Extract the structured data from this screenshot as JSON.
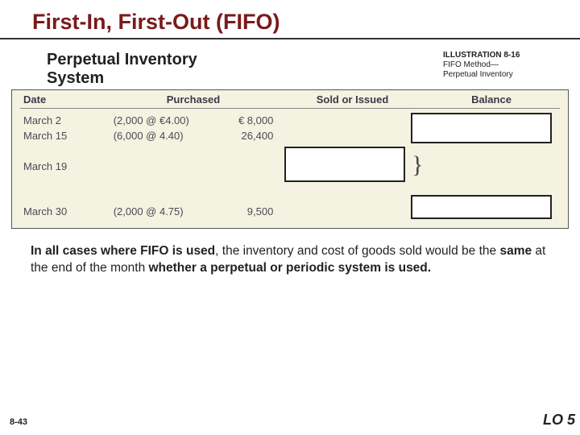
{
  "title": "First-In, First-Out (FIFO)",
  "subtitle_l1": "Perpetual Inventory",
  "subtitle_l2": "System",
  "illustration": {
    "label": "ILLUSTRATION 8-16",
    "caption_l1": "FIFO Method—",
    "caption_l2": "Perpetual Inventory"
  },
  "table": {
    "headers": {
      "date": "Date",
      "purchased": "Purchased",
      "sold": "Sold or Issued",
      "balance": "Balance"
    },
    "rows": [
      {
        "date": "March 2",
        "pur_detail": "(2,000 @ €4.00)",
        "pur_amt": "€  8,000"
      },
      {
        "date": "March 15",
        "pur_detail": "(6,000 @   4.40)",
        "pur_amt": "26,400"
      },
      {
        "date": "",
        "pur_detail": "",
        "pur_amt": ""
      },
      {
        "date": "March 19",
        "pur_detail": "",
        "pur_amt": ""
      },
      {
        "date": "",
        "pur_detail": "",
        "pur_amt": ""
      },
      {
        "date": "",
        "pur_detail": "",
        "pur_amt": ""
      },
      {
        "date": "March 30",
        "pur_detail": "(2,000 @   4.75)",
        "pur_amt": "9,500"
      }
    ]
  },
  "paragraph": {
    "p1a": "In all cases where FIFO is used",
    "p1b": ", the inventory and cost of goods sold would be the ",
    "p1c": "same",
    "p1d": " at the end of the month ",
    "p1e": "whether a perpetual or periodic system is used."
  },
  "footer": {
    "left": "8-43",
    "right": "LO 5"
  },
  "colors": {
    "title": "#7a1a1a",
    "table_bg": "#f4f2e0",
    "text": "#222222",
    "table_text": "#4a4a55"
  }
}
